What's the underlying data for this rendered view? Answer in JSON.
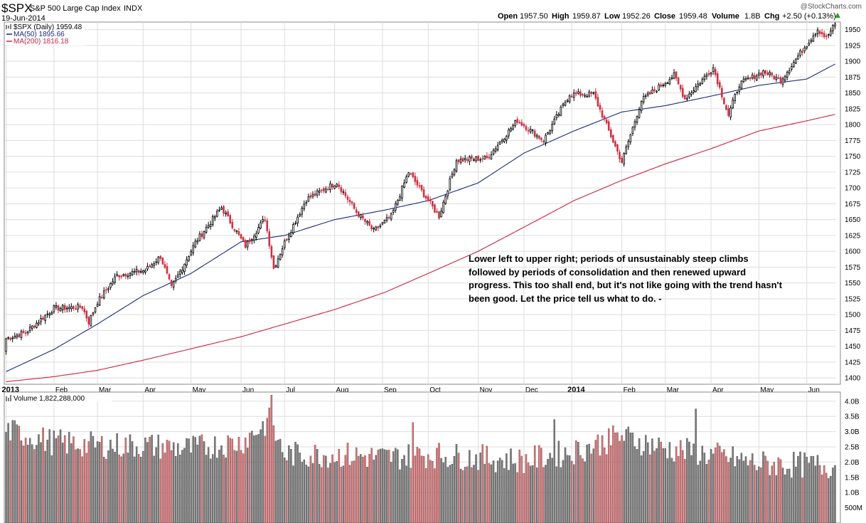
{
  "header": {
    "symbol": "$SPX",
    "name": "S&P 500 Large Cap Index",
    "exchange": "INDX",
    "date": "19-Jun-2014",
    "watermark": "@StockCharts.com",
    "open_label": "Open",
    "open": "1957.50",
    "high_label": "High",
    "high": "1959.87",
    "low_label": "Low",
    "low": "1952.26",
    "close_label": "Close",
    "close": "1959.48",
    "volume_label": "Volume",
    "volume": "1.8B",
    "chg_label": "Chg",
    "chg": "+2.50 (+0.13%)"
  },
  "legend": {
    "price": "$SPX (Daily) 1959.48",
    "ma50": "MA(50) 1895.66",
    "ma200": "MA(200) 1816.18",
    "volume": "Volume 1,822,288,000"
  },
  "annotation": [
    "Lower left to upper right;  periods of unsustainably steep climbs",
    "followed by periods of consolidation and then renewed upward",
    "progress. This too shall end, but it's not like going with the trend hasn't",
    "been good.  Let the price tell us what to do. -"
  ],
  "colors": {
    "up": "#000000",
    "down": "#cc3344",
    "ma50": "#1c2a7a",
    "ma200": "#cc2244",
    "vol_up": "#7a7a7a",
    "vol_down": "#e07074",
    "grid": "#dddddd"
  },
  "chart_data": [
    {
      "type": "candlestick",
      "title": "$SPX (Daily) 1959.48",
      "x_tick_labels": [
        "2013",
        "Feb",
        "Mar",
        "Apr",
        "May",
        "Jun",
        "Jul",
        "Aug",
        "Sep",
        "Oct",
        "Nov",
        "Dec",
        "2014",
        "Feb",
        "Mar",
        "Apr",
        "May",
        "Jun"
      ],
      "y_ticks": [
        1400,
        1425,
        1450,
        1475,
        1500,
        1525,
        1550,
        1575,
        1600,
        1625,
        1650,
        1675,
        1700,
        1725,
        1750,
        1775,
        1800,
        1825,
        1850,
        1875,
        1900,
        1925,
        1950
      ],
      "ylim": [
        1390,
        1962
      ],
      "close_anchors": [
        {
          "t": "2013-01-02",
          "v": 1462
        },
        {
          "t": "2013-01-15",
          "v": 1472
        },
        {
          "t": "2013-02-01",
          "v": 1510
        },
        {
          "t": "2013-02-20",
          "v": 1512
        },
        {
          "t": "2013-02-25",
          "v": 1488
        },
        {
          "t": "2013-03-01",
          "v": 1520
        },
        {
          "t": "2013-03-14",
          "v": 1562
        },
        {
          "t": "2013-04-02",
          "v": 1570
        },
        {
          "t": "2013-04-11",
          "v": 1592
        },
        {
          "t": "2013-04-18",
          "v": 1542
        },
        {
          "t": "2013-05-03",
          "v": 1614
        },
        {
          "t": "2013-05-21",
          "v": 1669
        },
        {
          "t": "2013-06-05",
          "v": 1608
        },
        {
          "t": "2013-06-18",
          "v": 1652
        },
        {
          "t": "2013-06-24",
          "v": 1573
        },
        {
          "t": "2013-07-01",
          "v": 1614
        },
        {
          "t": "2013-07-15",
          "v": 1682
        },
        {
          "t": "2013-08-02",
          "v": 1709
        },
        {
          "t": "2013-08-15",
          "v": 1662
        },
        {
          "t": "2013-08-27",
          "v": 1632
        },
        {
          "t": "2013-09-06",
          "v": 1655
        },
        {
          "t": "2013-09-18",
          "v": 1725
        },
        {
          "t": "2013-10-08",
          "v": 1655
        },
        {
          "t": "2013-10-18",
          "v": 1744
        },
        {
          "t": "2013-11-07",
          "v": 1747
        },
        {
          "t": "2013-11-27",
          "v": 1807
        },
        {
          "t": "2013-12-13",
          "v": 1775
        },
        {
          "t": "2013-12-31",
          "v": 1848
        },
        {
          "t": "2014-01-15",
          "v": 1848
        },
        {
          "t": "2014-01-27",
          "v": 1782
        },
        {
          "t": "2014-02-03",
          "v": 1741
        },
        {
          "t": "2014-02-14",
          "v": 1838
        },
        {
          "t": "2014-03-07",
          "v": 1878
        },
        {
          "t": "2014-03-14",
          "v": 1841
        },
        {
          "t": "2014-04-02",
          "v": 1890
        },
        {
          "t": "2014-04-11",
          "v": 1815
        },
        {
          "t": "2014-04-18",
          "v": 1864
        },
        {
          "t": "2014-05-05",
          "v": 1884
        },
        {
          "t": "2014-05-15",
          "v": 1870
        },
        {
          "t": "2014-06-09",
          "v": 1951
        },
        {
          "t": "2014-06-13",
          "v": 1937
        },
        {
          "t": "2014-06-19",
          "v": 1959
        }
      ],
      "ma50_anchors": [
        {
          "t": "2013-01-02",
          "v": 1410
        },
        {
          "t": "2013-02-01",
          "v": 1445
        },
        {
          "t": "2013-03-01",
          "v": 1485
        },
        {
          "t": "2013-04-01",
          "v": 1530
        },
        {
          "t": "2013-05-01",
          "v": 1565
        },
        {
          "t": "2013-06-03",
          "v": 1615
        },
        {
          "t": "2013-07-01",
          "v": 1625
        },
        {
          "t": "2013-08-01",
          "v": 1650
        },
        {
          "t": "2013-09-03",
          "v": 1665
        },
        {
          "t": "2013-10-01",
          "v": 1680
        },
        {
          "t": "2013-11-01",
          "v": 1708
        },
        {
          "t": "2013-12-02",
          "v": 1755
        },
        {
          "t": "2014-01-02",
          "v": 1790
        },
        {
          "t": "2014-02-03",
          "v": 1820
        },
        {
          "t": "2014-03-03",
          "v": 1830
        },
        {
          "t": "2014-04-01",
          "v": 1845
        },
        {
          "t": "2014-05-01",
          "v": 1862
        },
        {
          "t": "2014-06-02",
          "v": 1872
        },
        {
          "t": "2014-06-19",
          "v": 1895.66
        }
      ],
      "ma200_anchors": [
        {
          "t": "2013-01-02",
          "v": 1394
        },
        {
          "t": "2013-02-01",
          "v": 1402
        },
        {
          "t": "2013-03-01",
          "v": 1412
        },
        {
          "t": "2013-04-01",
          "v": 1428
        },
        {
          "t": "2013-05-01",
          "v": 1446
        },
        {
          "t": "2013-06-03",
          "v": 1465
        },
        {
          "t": "2013-07-01",
          "v": 1485
        },
        {
          "t": "2013-08-01",
          "v": 1508
        },
        {
          "t": "2013-09-03",
          "v": 1535
        },
        {
          "t": "2013-10-01",
          "v": 1565
        },
        {
          "t": "2013-11-01",
          "v": 1600
        },
        {
          "t": "2013-12-02",
          "v": 1638
        },
        {
          "t": "2014-01-02",
          "v": 1680
        },
        {
          "t": "2014-02-03",
          "v": 1712
        },
        {
          "t": "2014-03-03",
          "v": 1738
        },
        {
          "t": "2014-04-01",
          "v": 1762
        },
        {
          "t": "2014-05-01",
          "v": 1790
        },
        {
          "t": "2014-06-02",
          "v": 1806
        },
        {
          "t": "2014-06-19",
          "v": 1816.18
        }
      ],
      "series": [
        {
          "name": "$SPX (Daily)",
          "last": 1959.48
        },
        {
          "name": "MA(50)",
          "last": 1895.66
        },
        {
          "name": "MA(200)",
          "last": 1816.18
        }
      ]
    },
    {
      "type": "bar",
      "title": "Volume 1,822,288,000",
      "y_ticks": [
        "500M",
        "1.0B",
        "1.5B",
        "2.0B",
        "2.5B",
        "3.0B",
        "3.5B",
        "4.0B"
      ],
      "y_tick_values": [
        0.5,
        1.0,
        1.5,
        2.0,
        2.5,
        3.0,
        3.5,
        4.0
      ],
      "ylim": [
        0,
        4.3
      ],
      "units": "billions of shares",
      "volume_anchors": [
        {
          "t": "2013-01-02",
          "v": 3.0
        },
        {
          "t": "2013-02-01",
          "v": 2.6
        },
        {
          "t": "2013-03-01",
          "v": 2.5
        },
        {
          "t": "2013-04-01",
          "v": 2.5
        },
        {
          "t": "2013-05-01",
          "v": 2.4
        },
        {
          "t": "2013-06-03",
          "v": 2.6
        },
        {
          "t": "2013-06-20",
          "v": 3.3
        },
        {
          "t": "2013-07-01",
          "v": 2.2
        },
        {
          "t": "2013-08-01",
          "v": 2.2
        },
        {
          "t": "2013-09-03",
          "v": 2.1
        },
        {
          "t": "2013-10-01",
          "v": 2.2
        },
        {
          "t": "2013-11-01",
          "v": 2.1
        },
        {
          "t": "2013-12-02",
          "v": 2.0
        },
        {
          "t": "2014-01-02",
          "v": 2.3
        },
        {
          "t": "2014-02-03",
          "v": 2.8
        },
        {
          "t": "2014-03-03",
          "v": 2.4
        },
        {
          "t": "2014-04-01",
          "v": 2.2
        },
        {
          "t": "2014-05-01",
          "v": 1.9
        },
        {
          "t": "2014-06-02",
          "v": 1.85
        },
        {
          "t": "2014-06-19",
          "v": 1.82
        }
      ],
      "spikes": [
        {
          "t": "2013-06-21",
          "v": 4.2
        },
        {
          "t": "2013-06-24",
          "v": 3.2
        },
        {
          "t": "2013-09-20",
          "v": 3.3
        },
        {
          "t": "2013-12-20",
          "v": 3.4
        },
        {
          "t": "2014-03-21",
          "v": 3.75
        },
        {
          "t": "2014-01-24",
          "v": 3.1
        }
      ]
    }
  ]
}
